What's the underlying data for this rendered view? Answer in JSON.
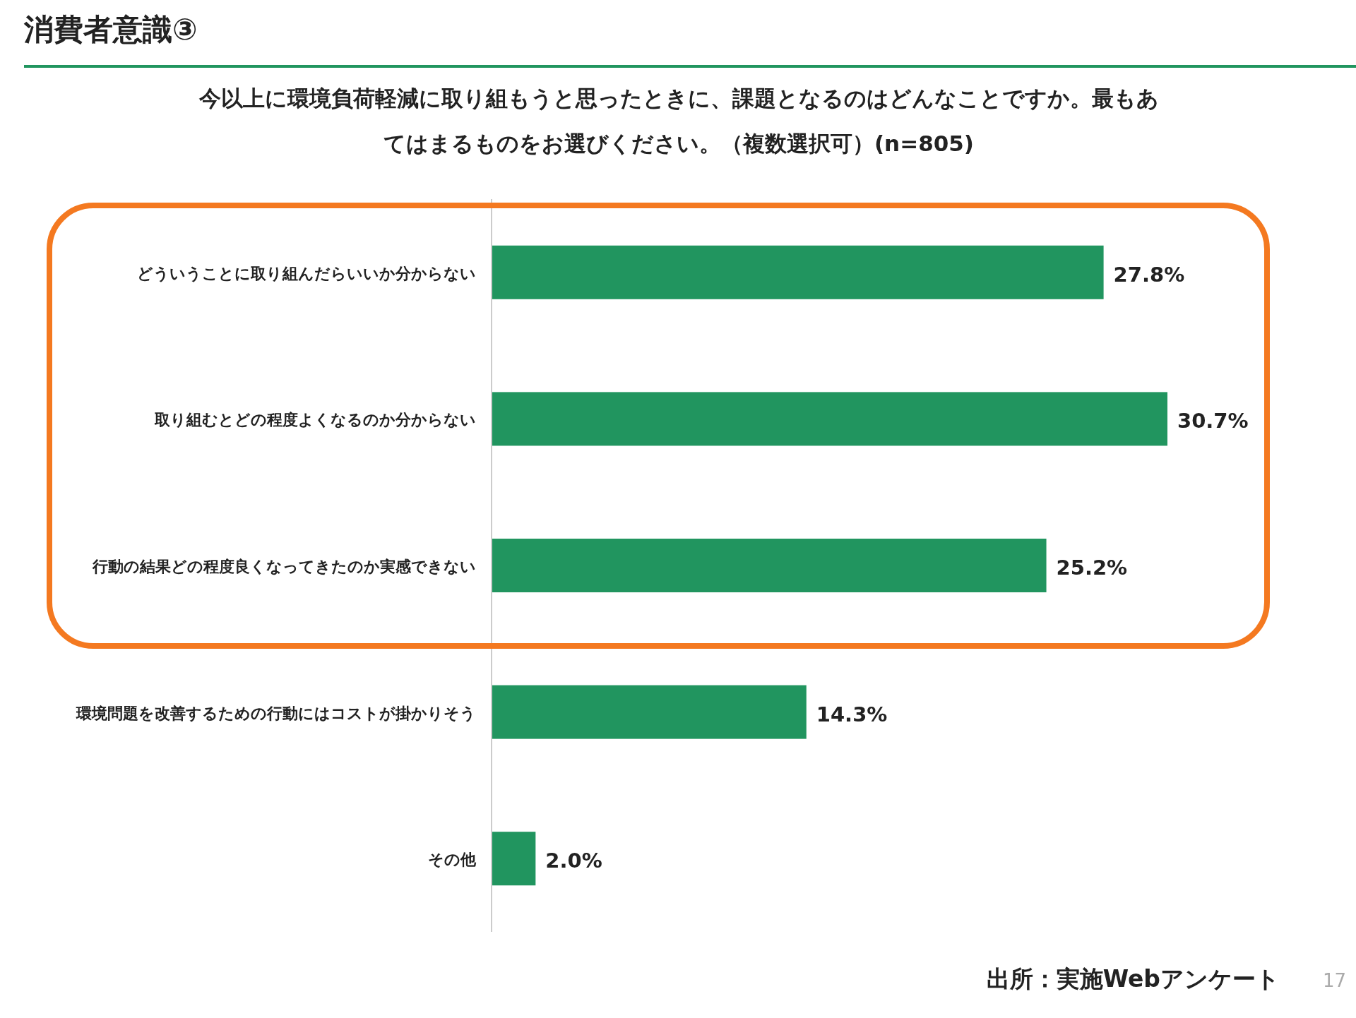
{
  "chart_data": {
    "type": "bar",
    "orientation": "horizontal",
    "title": "消費者意識③",
    "subtitle": "今以上に環境負荷軽減に取り組もうと思ったときに、課題となるのはどんなことですか。最もあてはまるものをお選びください。（複数選択可）(n=805)",
    "categories": [
      "どういうことに取り組んだらいいか分からない",
      "取り組むとどの程度よくなるのか分からない",
      "行動の結果どの程度良くなってきたのか実感できない",
      "環境問題を改善するための行動にはコストが掛かりそう",
      "その他"
    ],
    "values": [
      27.8,
      30.7,
      25.2,
      14.3,
      2.0
    ],
    "value_labels": [
      "27.8%",
      "30.7%",
      "25.2%",
      "14.3%",
      "2.0%"
    ],
    "color": "#21955f",
    "annotations": [
      "出所：実施Webアンケート",
      "17"
    ]
  }
}
